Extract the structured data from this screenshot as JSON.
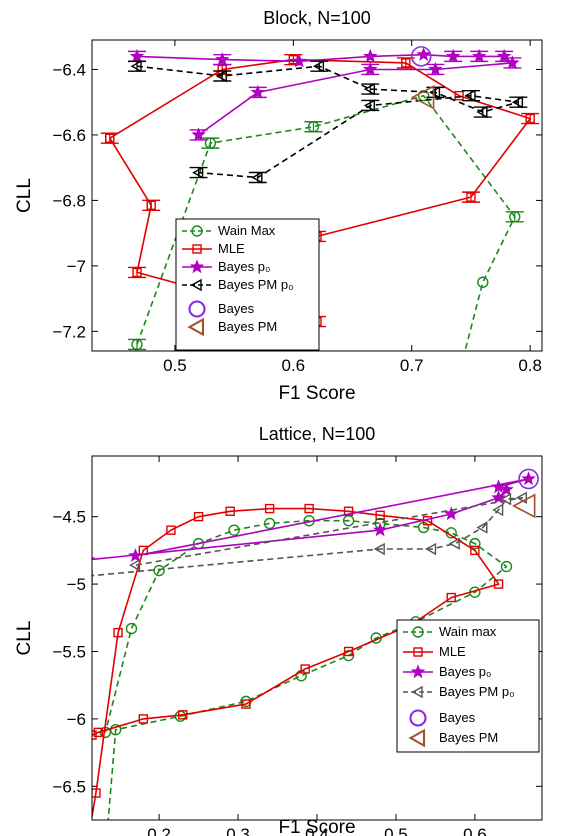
{
  "chart_data": [
    {
      "type": "line",
      "title": "Block, N=100",
      "xlabel": "F1 Score",
      "ylabel": "CLL",
      "xlim": [
        0.43,
        0.81
      ],
      "ylim": [
        -7.26,
        -6.31
      ],
      "xticks": [
        0.5,
        0.6,
        0.7,
        0.8
      ],
      "xtick_labels": [
        "0.5",
        "0.6",
        "0.7",
        "0.8"
      ],
      "yticks": [
        -6.4,
        -6.6,
        -6.8,
        -7.0,
        -7.2
      ],
      "ytick_labels": [
        "−6.4",
        "−6.6",
        "−6.8",
        "−7",
        "−7.2"
      ],
      "grid": false,
      "legend_position": "lower-center",
      "series": [
        {
          "name": "Wain Max",
          "color": "#1a8a1a",
          "marker": "circle",
          "dash": "dashed",
          "points": [
            [
              0.45,
              -7.6
            ],
            [
              0.468,
              -7.24
            ],
            [
              0.53,
              -6.625
            ],
            [
              0.617,
              -6.575
            ],
            [
              0.71,
              -6.48
            ],
            [
              0.787,
              -6.85
            ],
            [
              0.76,
              -7.05
            ],
            [
              0.735,
              -7.4
            ]
          ],
          "error_bars": [
            false,
            true,
            true,
            true,
            false,
            true,
            false,
            false
          ]
        },
        {
          "name": "MLE",
          "color": "#e00000",
          "marker": "square",
          "dash": "solid",
          "points": [
            [
              0.445,
              -6.61
            ],
            [
              0.48,
              -6.815
            ],
            [
              0.468,
              -7.02
            ],
            [
              0.62,
              -7.17
            ],
            [
              0.62,
              -7.5
            ],
            [
              0.62,
              -6.91
            ],
            [
              0.75,
              -6.79
            ],
            [
              0.8,
              -6.55
            ],
            [
              0.74,
              -6.48
            ],
            [
              0.695,
              -6.38
            ],
            [
              0.6,
              -6.37
            ],
            [
              0.54,
              -6.4
            ],
            [
              0.445,
              -6.61
            ]
          ],
          "error_bars": [
            true,
            true,
            true,
            true,
            false,
            true,
            true,
            true,
            false,
            true,
            true,
            true,
            false
          ]
        },
        {
          "name": "Bayes p₀",
          "color": "#b000c0",
          "marker": "star",
          "dash": "solid",
          "points": [
            [
              0.468,
              -6.36
            ],
            [
              0.54,
              -6.37
            ],
            [
              0.605,
              -6.375
            ],
            [
              0.665,
              -6.36
            ],
            [
              0.71,
              -6.355
            ],
            [
              0.735,
              -6.36
            ],
            [
              0.757,
              -6.36
            ],
            [
              0.778,
              -6.36
            ],
            [
              0.785,
              -6.38
            ],
            [
              0.72,
              -6.4
            ],
            [
              0.665,
              -6.4
            ],
            [
              0.57,
              -6.47
            ],
            [
              0.52,
              -6.6
            ]
          ],
          "error_bars": [
            true,
            true,
            false,
            false,
            false,
            true,
            true,
            true,
            true,
            true,
            true,
            true,
            true
          ]
        },
        {
          "name": "Bayes PM p₀",
          "color": "#000000",
          "marker": "triangle-left",
          "dash": "dashed",
          "points": [
            [
              0.468,
              -6.39
            ],
            [
              0.54,
              -6.42
            ],
            [
              0.622,
              -6.39
            ],
            [
              0.665,
              -6.46
            ],
            [
              0.72,
              -6.47
            ],
            [
              0.76,
              -6.53
            ],
            [
              0.79,
              -6.5
            ],
            [
              0.75,
              -6.48
            ],
            [
              0.665,
              -6.51
            ],
            [
              0.57,
              -6.73
            ],
            [
              0.52,
              -6.715
            ]
          ],
          "error_bars": [
            true,
            true,
            true,
            true,
            true,
            true,
            true,
            true,
            true,
            true,
            true
          ]
        },
        {
          "name": "Bayes",
          "color": "#8a2be2",
          "marker": "big-circle",
          "dash": "none",
          "points": [
            [
              0.708,
              -6.36
            ]
          ],
          "error_bars": [
            false
          ]
        },
        {
          "name": "Bayes PM",
          "color": "#a0522d",
          "marker": "big-triangle-left",
          "dash": "none",
          "points": [
            [
              0.71,
              -6.485
            ]
          ],
          "error_bars": [
            false
          ]
        }
      ]
    },
    {
      "type": "line",
      "title": "Lattice, N=100",
      "xlabel": "F1 Score",
      "ylabel": "CLL",
      "xlim": [
        0.115,
        0.685
      ],
      "ylim": [
        -6.75,
        -4.05
      ],
      "xticks": [
        0.2,
        0.3,
        0.4,
        0.5,
        0.6
      ],
      "xtick_labels": [
        "0.2",
        "0.3",
        "0.4",
        "0.5",
        "0.6"
      ],
      "yticks": [
        -4.5,
        -5.0,
        -5.5,
        -6.0,
        -6.5
      ],
      "ytick_labels": [
        "−4.5",
        "−5",
        "−5.5",
        "−6",
        "−6.5"
      ],
      "grid": false,
      "legend_position": "lower-right",
      "series": [
        {
          "name": "Wain max",
          "color": "#1a8a1a",
          "marker": "circle",
          "dash": "dashed",
          "points": [
            [
              0.132,
              -7.0
            ],
            [
              0.145,
              -6.08
            ],
            [
              0.227,
              -5.98
            ],
            [
              0.31,
              -5.87
            ],
            [
              0.38,
              -5.68
            ],
            [
              0.44,
              -5.53
            ],
            [
              0.475,
              -5.4
            ],
            [
              0.525,
              -5.28
            ],
            [
              0.6,
              -5.06
            ],
            [
              0.64,
              -4.87
            ],
            [
              0.6,
              -4.7
            ],
            [
              0.57,
              -4.62
            ],
            [
              0.535,
              -4.58
            ],
            [
              0.48,
              -4.55
            ],
            [
              0.44,
              -4.53
            ],
            [
              0.39,
              -4.53
            ],
            [
              0.34,
              -4.55
            ],
            [
              0.295,
              -4.6
            ],
            [
              0.25,
              -4.7
            ],
            [
              0.2,
              -4.9
            ],
            [
              0.165,
              -5.33
            ],
            [
              0.132,
              -6.1
            ]
          ],
          "error_bars": [
            false,
            false,
            false,
            false,
            false,
            false,
            false,
            false,
            false,
            false,
            false,
            false,
            false,
            false,
            false,
            false,
            false,
            false,
            false,
            false,
            false,
            false
          ]
        },
        {
          "name": "MLE",
          "color": "#e00000",
          "marker": "square",
          "dash": "solid",
          "points": [
            [
              0.115,
              -6.12
            ],
            [
              0.123,
              -6.1
            ],
            [
              0.18,
              -6.0
            ],
            [
              0.23,
              -5.97
            ],
            [
              0.31,
              -5.89
            ],
            [
              0.385,
              -5.63
            ],
            [
              0.44,
              -5.5
            ],
            [
              0.52,
              -5.3
            ],
            [
              0.57,
              -5.1
            ],
            [
              0.63,
              -5.0
            ],
            [
              0.6,
              -4.75
            ],
            [
              0.54,
              -4.53
            ],
            [
              0.48,
              -4.49
            ],
            [
              0.44,
              -4.46
            ],
            [
              0.39,
              -4.44
            ],
            [
              0.34,
              -4.44
            ],
            [
              0.29,
              -4.46
            ],
            [
              0.25,
              -4.5
            ],
            [
              0.215,
              -4.6
            ],
            [
              0.18,
              -4.75
            ],
            [
              0.148,
              -5.36
            ],
            [
              0.12,
              -6.55
            ],
            [
              0.11,
              -6.9
            ]
          ],
          "error_bars": [
            false,
            false,
            false,
            false,
            false,
            false,
            false,
            false,
            false,
            false,
            false,
            false,
            false,
            false,
            false,
            false,
            false,
            false,
            false,
            false,
            false,
            false,
            false
          ]
        },
        {
          "name": "Bayes p₀",
          "color": "#b000c0",
          "marker": "star",
          "dash": "solid",
          "points": [
            [
              0.11,
              -4.82
            ],
            [
              0.48,
              -4.6
            ],
            [
              0.57,
              -4.48
            ],
            [
              0.63,
              -4.36
            ],
            [
              0.64,
              -4.3
            ],
            [
              0.63,
              -4.28
            ],
            [
              0.668,
              -4.22
            ],
            [
              0.17,
              -4.79
            ]
          ],
          "error_bars": [
            false,
            false,
            false,
            false,
            false,
            false,
            false,
            false
          ]
        },
        {
          "name": "Bayes PM p₀",
          "color": "#555555",
          "marker": "triangle-left",
          "dash": "dashed",
          "points": [
            [
              0.11,
              -4.94
            ],
            [
              0.48,
              -4.74
            ],
            [
              0.545,
              -4.74
            ],
            [
              0.575,
              -4.7
            ],
            [
              0.61,
              -4.58
            ],
            [
              0.63,
              -4.45
            ],
            [
              0.64,
              -4.37
            ],
            [
              0.66,
              -4.36
            ],
            [
              0.17,
              -4.86
            ]
          ],
          "error_bars": [
            false,
            false,
            false,
            false,
            false,
            false,
            false,
            false,
            false
          ]
        },
        {
          "name": "Bayes",
          "color": "#8a2be2",
          "marker": "big-circle",
          "dash": "none",
          "points": [
            [
              0.668,
              -4.22
            ]
          ],
          "error_bars": [
            false
          ]
        },
        {
          "name": "Bayes PM",
          "color": "#a0522d",
          "marker": "big-triangle-left",
          "dash": "none",
          "points": [
            [
              0.663,
              -4.42
            ]
          ],
          "error_bars": [
            false
          ]
        }
      ]
    }
  ]
}
